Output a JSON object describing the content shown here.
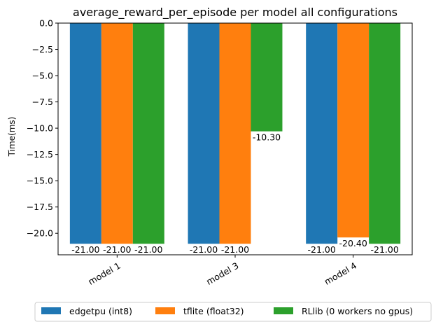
{
  "chart_data": {
    "type": "bar",
    "title": "average_reward_per_episode per model all configurations",
    "xlabel": "",
    "ylabel": "Time(ms)",
    "categories": [
      "model 1",
      "model 3",
      "model 4"
    ],
    "series": [
      {
        "name": "edgetpu (int8)",
        "color": "#1f77b4",
        "values": [
          -21.0,
          -21.0,
          -21.0
        ],
        "labels": [
          "-21.00",
          "-21.00",
          "-21.00"
        ]
      },
      {
        "name": "tflite (float32)",
        "color": "#ff7f0e",
        "values": [
          -21.0,
          -21.0,
          -20.4
        ],
        "labels": [
          "-21.00",
          "-21.00",
          "-20.40"
        ]
      },
      {
        "name": "RLlib (0 workers no gpus)",
        "color": "#2ca02c",
        "values": [
          -21.0,
          -10.3,
          -21.0
        ],
        "labels": [
          "-21.00",
          "-10.30",
          "-21.00"
        ]
      }
    ],
    "ylim": [
      -22.05,
      0
    ],
    "yticks": [
      0.0,
      -2.5,
      -5.0,
      -7.5,
      -10.0,
      -12.5,
      -15.0,
      -17.5,
      -20.0
    ],
    "ytick_labels": [
      "0.0",
      "−2.5",
      "−5.0",
      "−7.5",
      "−10.0",
      "−12.5",
      "−15.0",
      "−17.5",
      "−20.0"
    ],
    "legend_position": "bottom-center",
    "grid": false
  }
}
